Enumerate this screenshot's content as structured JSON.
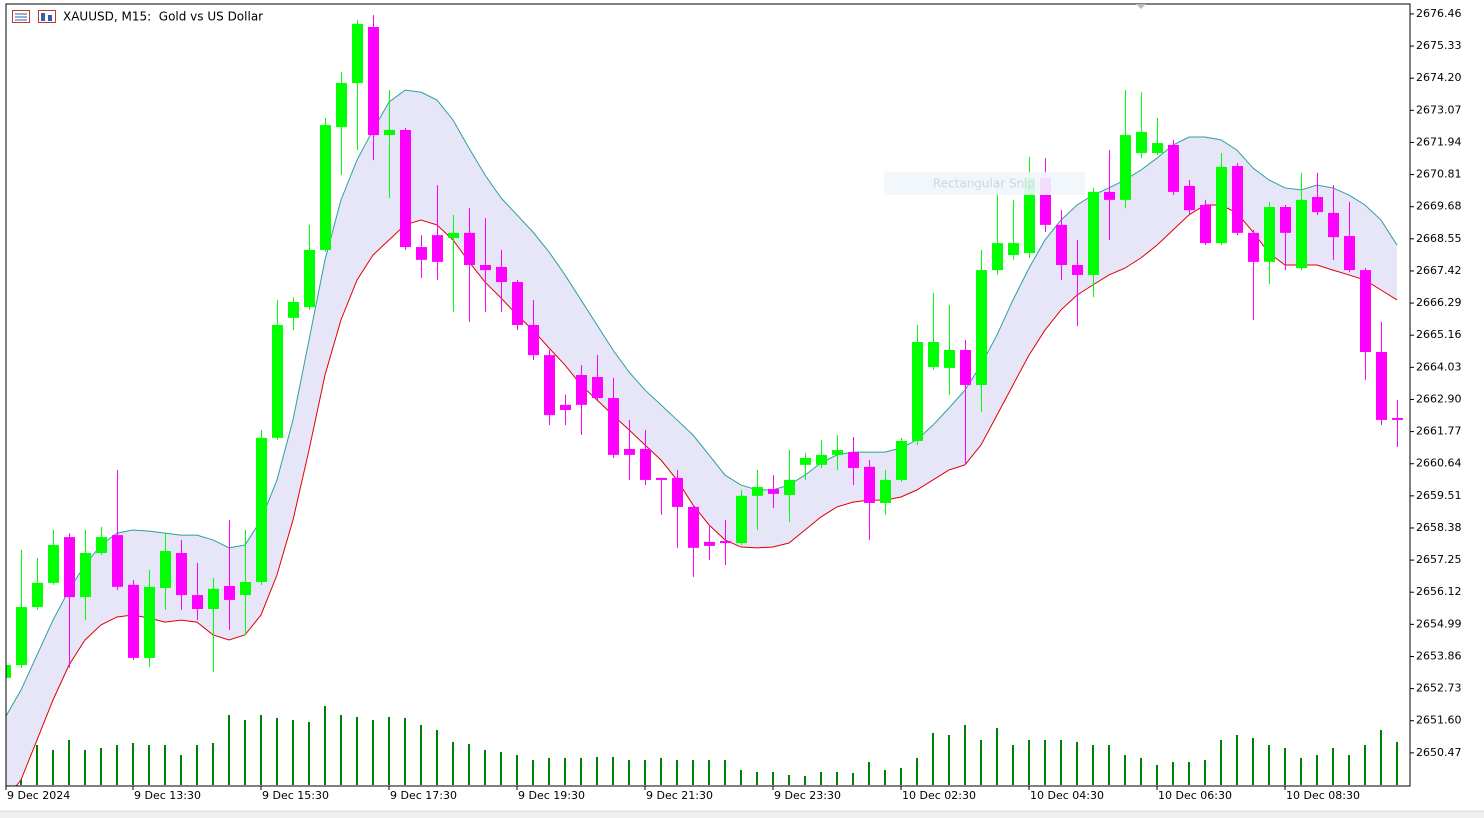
{
  "chart_data": {
    "type": "candlestick",
    "title": "XAUUSD, M15:  Gold vs US Dollar",
    "overlay_label": "Rectangular Snip",
    "up_color": "#00ff00",
    "down_color": "#ff00ff",
    "categories": [
      "9 Dec 2024",
      null,
      null,
      null,
      null,
      null,
      null,
      null,
      "9 Dec 13:30",
      null,
      null,
      null,
      null,
      null,
      null,
      null,
      "9 Dec 15:30",
      null,
      null,
      null,
      null,
      null,
      null,
      null,
      "9 Dec 17:30",
      null,
      null,
      null,
      null,
      null,
      null,
      null,
      "9 Dec 19:30",
      null,
      null,
      null,
      null,
      null,
      null,
      null,
      "9 Dec 21:30",
      null,
      null,
      null,
      null,
      null,
      null,
      null,
      "9 Dec 23:30",
      null,
      null,
      null,
      null,
      null,
      null,
      null,
      "10 Dec 02:30",
      null,
      null,
      null,
      null,
      null,
      null,
      null,
      "10 Dec 04:30",
      null,
      null,
      null,
      null,
      null,
      null,
      null,
      "10 Dec 06:30",
      null,
      null,
      null,
      null,
      null,
      null,
      null,
      "10 Dec 08:30",
      null,
      null,
      null,
      null,
      null,
      null,
      null
    ],
    "open": [
      2653.11,
      2653.56,
      2655.6,
      2656.45,
      2658.06,
      2655.95,
      2657.5,
      2658.13,
      2656.38,
      2653.81,
      2656.27,
      2657.5,
      2656.02,
      2655.53,
      2656.34,
      2656.02,
      2656.48,
      2661.55,
      2665.77,
      2666.15,
      2668.16,
      2672.48,
      2674.03,
      2676.0,
      2672.2,
      2672.38,
      2668.26,
      2668.68,
      2668.58,
      2668.76,
      2667.63,
      2667.56,
      2667.03,
      2665.52,
      2664.46,
      2662.71,
      2663.76,
      2663.69,
      2662.95,
      2661.16,
      2661.16,
      2660.14,
      2660.14,
      2659.12,
      2657.89,
      2657.92,
      2657.85,
      2659.51,
      2659.75,
      2659.54,
      2660.6,
      2660.6,
      2660.95,
      2661.05,
      2660.53,
      2659.26,
      2660.07,
      2661.44,
      2664.04,
      2664.01,
      2664.64,
      2663.41,
      2667.45,
      2667.98,
      2668.05,
      2670.69,
      2669.04,
      2667.63,
      2667.28,
      2670.2,
      2669.92,
      2671.57,
      2671.57,
      2671.85,
      2670.41,
      2669.74,
      2668.4,
      2671.11,
      2668.76,
      2667.74,
      2669.67,
      2667.52,
      2670.02,
      2669.46,
      2668.65,
      2667.45,
      2664.57,
      2662.25
    ],
    "high": [
      2653.74,
      2657.61,
      2657.33,
      2658.31,
      2658.2,
      2658.31,
      2658.42,
      2660.42,
      2656.55,
      2656.9,
      2658.2,
      2657.96,
      2657.15,
      2656.62,
      2658.66,
      2658.31,
      2661.83,
      2666.4,
      2666.5,
      2669.04,
      2672.8,
      2674.42,
      2676.25,
      2676.42,
      2673.78,
      2672.45,
      2668.68,
      2670.44,
      2669.39,
      2669.63,
      2669.28,
      2668.16,
      2667.1,
      2666.4,
      2664.64,
      2663.06,
      2664.11,
      2664.46,
      2663.66,
      2662.18,
      2661.83,
      2660.14,
      2660.42,
      2659.19,
      2658.49,
      2658.66,
      2659.72,
      2660.42,
      2660.24,
      2661.12,
      2661.02,
      2661.48,
      2661.65,
      2661.58,
      2660.77,
      2660.42,
      2661.55,
      2665.52,
      2666.65,
      2666.22,
      2664.99,
      2668.16,
      2670.62,
      2669.92,
      2671.43,
      2671.39,
      2669.56,
      2668.51,
      2670.34,
      2671.67,
      2673.78,
      2673.71,
      2672.8,
      2672.03,
      2670.62,
      2669.92,
      2671.57,
      2671.22,
      2668.86,
      2669.85,
      2669.74,
      2670.87,
      2670.87,
      2670.44,
      2669.85,
      2667.52,
      2665.63,
      2662.88
    ],
    "low": [
      2653.03,
      2653.46,
      2655.5,
      2656.38,
      2653.46,
      2655.14,
      2657.43,
      2656.2,
      2653.74,
      2653.49,
      2655.5,
      2655.5,
      2655.14,
      2653.32,
      2654.79,
      2654.62,
      2656.38,
      2661.48,
      2665.34,
      2666.05,
      2668.09,
      2670.8,
      2671.67,
      2671.32,
      2669.99,
      2668.16,
      2667.17,
      2667.1,
      2665.98,
      2665.63,
      2665.98,
      2665.98,
      2665.34,
      2664.29,
      2662.0,
      2662.0,
      2661.65,
      2662.88,
      2660.84,
      2660.07,
      2659.89,
      2658.84,
      2657.68,
      2656.66,
      2657.25,
      2657.08,
      2657.78,
      2658.31,
      2659.08,
      2658.59,
      2660.07,
      2660.49,
      2660.42,
      2659.89,
      2657.96,
      2658.84,
      2660.0,
      2661.3,
      2663.94,
      2663.06,
      2660.6,
      2662.46,
      2667.28,
      2667.81,
      2667.88,
      2668.79,
      2667.1,
      2665.48,
      2666.5,
      2668.51,
      2669.63,
      2671.39,
      2671.5,
      2670.09,
      2669.39,
      2668.33,
      2668.33,
      2668.68,
      2665.7,
      2666.96,
      2667.45,
      2667.45,
      2669.39,
      2667.81,
      2667.38,
      2663.59,
      2662.0,
      2661.23
    ],
    "close": [
      2653.56,
      2655.6,
      2656.45,
      2657.78,
      2655.95,
      2657.5,
      2658.06,
      2656.31,
      2653.81,
      2656.31,
      2657.57,
      2656.02,
      2655.53,
      2656.24,
      2655.85,
      2656.48,
      2661.55,
      2665.52,
      2666.33,
      2668.16,
      2672.55,
      2674.03,
      2676.11,
      2672.2,
      2672.38,
      2668.26,
      2667.81,
      2667.74,
      2668.76,
      2667.63,
      2667.45,
      2667.03,
      2665.52,
      2664.46,
      2662.35,
      2662.53,
      2662.71,
      2662.95,
      2660.95,
      2660.95,
      2660.07,
      2660.07,
      2659.12,
      2657.68,
      2657.75,
      2657.85,
      2659.51,
      2659.82,
      2659.58,
      2660.07,
      2660.84,
      2660.95,
      2661.12,
      2660.49,
      2659.26,
      2660.07,
      2661.44,
      2664.92,
      2664.92,
      2664.64,
      2663.41,
      2667.45,
      2668.4,
      2668.4,
      2670.69,
      2669.04,
      2667.63,
      2667.28,
      2670.2,
      2669.92,
      2672.2,
      2672.31,
      2671.92,
      2670.2,
      2669.56,
      2668.4,
      2671.08,
      2668.76,
      2667.74,
      2669.67,
      2668.76,
      2669.92,
      2669.49,
      2668.61,
      2667.45,
      2664.57,
      2662.18,
      2662.18
    ],
    "envelope": {
      "fill": "#e6e6f8",
      "upper": {
        "color": "#2aa198",
        "values": [
          2651.7,
          2652.68,
          2653.91,
          2655.14,
          2656.2,
          2657.08,
          2657.78,
          2658.2,
          2658.31,
          2658.27,
          2658.2,
          2658.13,
          2658.13,
          2657.96,
          2657.68,
          2657.78,
          2658.66,
          2660.07,
          2662.18,
          2664.99,
          2667.81,
          2669.92,
          2671.32,
          2672.38,
          2673.36,
          2673.78,
          2673.71,
          2673.43,
          2672.73,
          2671.74,
          2670.8,
          2669.99,
          2669.39,
          2668.79,
          2668.09,
          2667.28,
          2666.4,
          2665.52,
          2664.64,
          2663.87,
          2663.23,
          2662.71,
          2662.18,
          2661.65,
          2660.95,
          2660.24,
          2659.89,
          2659.72,
          2659.72,
          2659.89,
          2660.24,
          2660.67,
          2660.95,
          2661.05,
          2661.05,
          2661.05,
          2661.19,
          2661.48,
          2662.0,
          2662.6,
          2663.23,
          2664.11,
          2665.17,
          2666.4,
          2667.52,
          2668.51,
          2669.21,
          2669.74,
          2670.09,
          2670.34,
          2670.62,
          2670.97,
          2671.39,
          2671.85,
          2672.13,
          2672.13,
          2672.03,
          2671.67,
          2671.04,
          2670.62,
          2670.34,
          2670.27,
          2670.44,
          2670.34,
          2670.09,
          2669.74,
          2669.21,
          2668.33
        ]
      },
      "lower": {
        "color": "#e00000",
        "values": [
          2648.81,
          2649.52,
          2650.92,
          2652.33,
          2653.56,
          2654.44,
          2654.97,
          2655.25,
          2655.32,
          2655.21,
          2655.07,
          2655.14,
          2655.07,
          2654.62,
          2654.44,
          2654.62,
          2655.32,
          2656.73,
          2658.66,
          2661.12,
          2663.76,
          2665.7,
          2667.1,
          2667.98,
          2668.51,
          2669.04,
          2669.21,
          2669.04,
          2668.51,
          2667.74,
          2667.03,
          2666.47,
          2665.87,
          2665.34,
          2664.71,
          2664.11,
          2663.41,
          2662.88,
          2662.35,
          2661.83,
          2661.3,
          2660.77,
          2660.07,
          2659.19,
          2658.49,
          2657.96,
          2657.71,
          2657.68,
          2657.71,
          2657.85,
          2658.31,
          2658.77,
          2659.12,
          2659.29,
          2659.36,
          2659.36,
          2659.47,
          2659.72,
          2660.07,
          2660.42,
          2660.6,
          2661.3,
          2662.35,
          2663.41,
          2664.46,
          2665.34,
          2666.05,
          2666.57,
          2666.93,
          2667.28,
          2667.52,
          2667.88,
          2668.33,
          2668.86,
          2669.39,
          2669.74,
          2669.74,
          2669.46,
          2668.79,
          2668.05,
          2667.63,
          2667.63,
          2667.63,
          2667.45,
          2667.28,
          2667.1,
          2666.75,
          2666.4
        ]
      }
    },
    "volume": {
      "color": "#008000",
      "ylim": [
        0,
        100
      ],
      "values": [
        30,
        47,
        40,
        35,
        45,
        35,
        37,
        40,
        42,
        40,
        40,
        30,
        40,
        42,
        70,
        65,
        70,
        67,
        65,
        63,
        79,
        70,
        68,
        65,
        68,
        67,
        60,
        55,
        43,
        41,
        35,
        33,
        30,
        25,
        27,
        27,
        27,
        28,
        28,
        25,
        25,
        27,
        25,
        25,
        25,
        25,
        15,
        13,
        13,
        10,
        9,
        13,
        13,
        12,
        23,
        15,
        17,
        27,
        52,
        50,
        60,
        45,
        57,
        40,
        45,
        45,
        45,
        43,
        40,
        40,
        30,
        27,
        20,
        23,
        23,
        25,
        45,
        50,
        47,
        40,
        37,
        27,
        30,
        37,
        30,
        40,
        55,
        43
      ]
    },
    "ylim": [
      2649.34,
      2676.95
    ],
    "yticks": [
      2676.46,
      2675.33,
      {
        "value": 2674.2,
        "label": "2674.20"
      },
      2673.07,
      2671.94,
      2670.81,
      2669.68,
      2668.55,
      2667.42,
      2666.29,
      2665.16,
      2664.03,
      {
        "value": 2662.9,
        "label": "2662.90"
      },
      2661.77,
      2660.64,
      2659.51,
      2658.38,
      2657.25,
      2656.12,
      2654.99,
      2653.86,
      2652.73,
      {
        "value": 2651.6,
        "label": "2651.60"
      },
      2650.47
    ]
  }
}
